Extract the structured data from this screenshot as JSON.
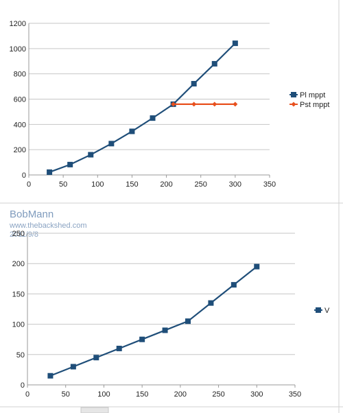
{
  "watermark": {
    "name": "BobMann",
    "url": "www.thebackshed.com",
    "date": "2011/9/8"
  },
  "colors": {
    "navy": "#1f4e79",
    "orange": "#e8501e",
    "gridline": "#c6c6c6",
    "axis": "#999999"
  },
  "chart_data": [
    {
      "type": "line",
      "title": "",
      "xlabel": "",
      "ylabel": "",
      "xlim": [
        0,
        350
      ],
      "ylim": [
        0,
        1200
      ],
      "x_ticks": [
        0,
        50,
        100,
        150,
        200,
        250,
        300,
        350
      ],
      "y_ticks": [
        0,
        200,
        400,
        600,
        800,
        1000,
        1200
      ],
      "grid": true,
      "legend": "right",
      "series": [
        {
          "name": "Pl mppt",
          "color": "#1f4e79",
          "marker": "square",
          "x": [
            30,
            60,
            90,
            120,
            150,
            180,
            210,
            240,
            270,
            300
          ],
          "y": [
            22,
            82,
            160,
            248,
            345,
            450,
            560,
            722,
            880,
            1042
          ]
        },
        {
          "name": "Pst mppt",
          "color": "#e8501e",
          "marker": "diamond",
          "x": [
            210,
            240,
            270,
            300
          ],
          "y": [
            560,
            560,
            560,
            560
          ]
        }
      ]
    },
    {
      "type": "line",
      "title": "",
      "xlabel": "",
      "ylabel": "",
      "xlim": [
        0,
        350
      ],
      "ylim": [
        0,
        250
      ],
      "x_ticks": [
        0,
        50,
        100,
        150,
        200,
        250,
        300,
        350
      ],
      "y_ticks": [
        0,
        50,
        100,
        150,
        200,
        250
      ],
      "grid": true,
      "legend": "right",
      "series": [
        {
          "name": "V",
          "color": "#1f4e79",
          "marker": "square",
          "x": [
            30,
            60,
            90,
            120,
            150,
            180,
            210,
            240,
            270,
            300
          ],
          "y": [
            15,
            30,
            45,
            60,
            75,
            90,
            105,
            135,
            165,
            195
          ]
        }
      ]
    }
  ]
}
